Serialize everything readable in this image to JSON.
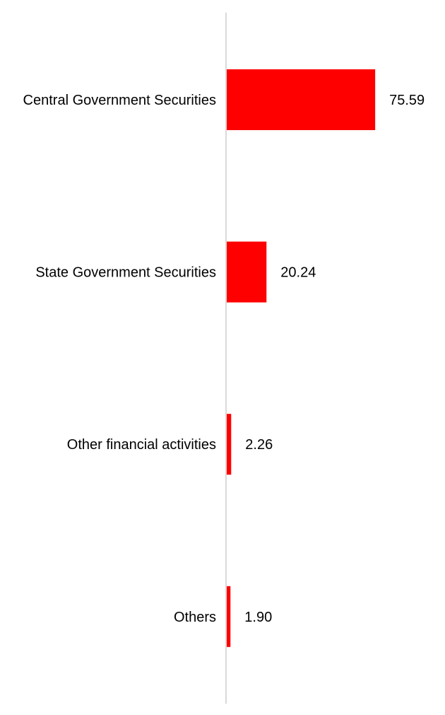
{
  "chart_data": {
    "type": "bar",
    "orientation": "horizontal",
    "categories": [
      "Central Government Securities",
      "State Government Securities",
      "Other financial activities",
      "Others"
    ],
    "values": [
      75.59,
      20.24,
      2.26,
      1.9
    ],
    "value_labels": [
      "75.59",
      "20.24",
      "2.26",
      "1.90"
    ],
    "title": "",
    "xlabel": "",
    "ylabel": "",
    "xlim": [
      0,
      100
    ],
    "grid": false,
    "legend": "none",
    "bar_color": "#ff0000",
    "axis_color": "#d9d9d9"
  }
}
